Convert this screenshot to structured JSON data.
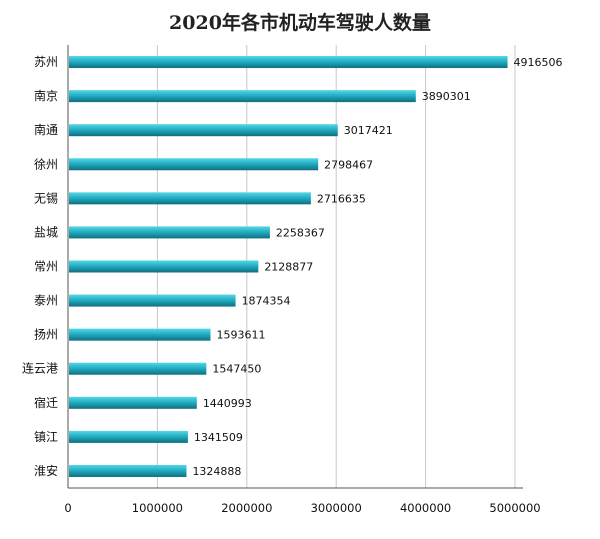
{
  "chart_data": {
    "type": "bar",
    "orientation": "horizontal",
    "title": "2020年各市机动车驾驶人数量",
    "categories": [
      "苏州",
      "南京",
      "南通",
      "徐州",
      "无锡",
      "盐城",
      "常州",
      "泰州",
      "扬州",
      "连云港",
      "宿迁",
      "镇江",
      "淮安"
    ],
    "values": [
      4916506,
      3890301,
      3017421,
      2798467,
      2716635,
      2258367,
      2128877,
      1874354,
      1593611,
      1547450,
      1440993,
      1341509,
      1324888
    ],
    "value_labels": [
      "4916506",
      "3890301",
      "3017421",
      "2798467",
      "2716635",
      "2258367",
      "2128877",
      "1874354",
      "1593611",
      "1547450",
      "1440993",
      "1341509",
      "1324888"
    ],
    "xlim": [
      0,
      5000000
    ],
    "xticks": [
      0,
      1000000,
      2000000,
      3000000,
      4000000,
      5000000
    ],
    "xtick_labels": [
      "0",
      "1000000",
      "2000000",
      "3000000",
      "4000000",
      "5000000"
    ],
    "grid": "vertical",
    "legend": "none",
    "bar_color_top": "#56d6e6",
    "bar_color_mid": "#23aec3",
    "bar_color_bottom": "#0e6f7f",
    "grid_color": "#c8c8c8",
    "axis_color": "#555555"
  }
}
